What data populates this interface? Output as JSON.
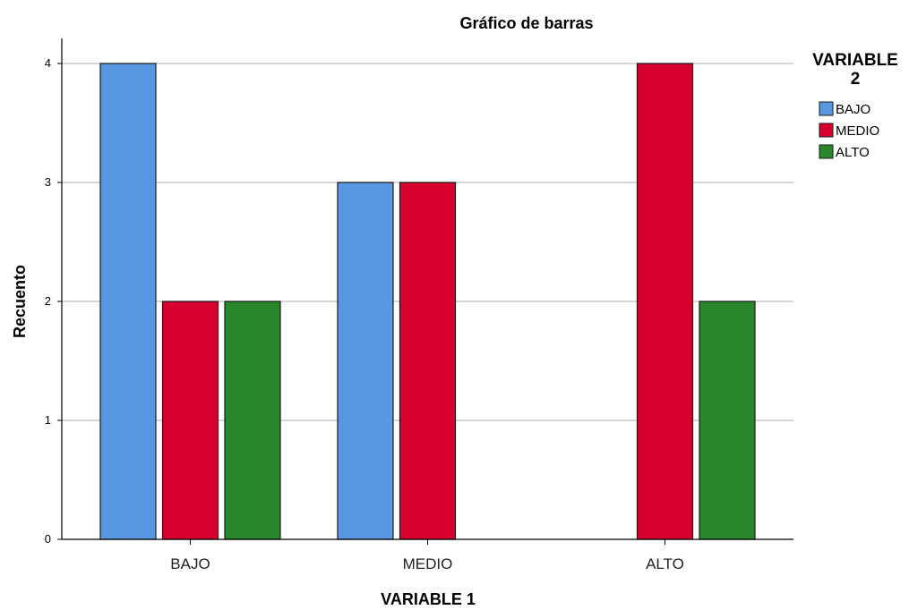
{
  "chart_data": {
    "type": "bar",
    "title": "Gráfico de barras",
    "xlabel": "VARIABLE 1",
    "ylabel": "Recuento",
    "categories": [
      "BAJO",
      "MEDIO",
      "ALTO"
    ],
    "series": [
      {
        "name": "BAJO",
        "values": [
          4,
          3,
          0
        ],
        "color": "#5898e0"
      },
      {
        "name": "MEDIO",
        "values": [
          2,
          3,
          4
        ],
        "color": "#d6002f"
      },
      {
        "name": "ALTO",
        "values": [
          2,
          0,
          2
        ],
        "color": "#28862b"
      }
    ],
    "ylim": [
      0,
      4
    ],
    "yticks": [
      "0",
      "1",
      "2",
      "3",
      "4"
    ],
    "grid": true,
    "legend": {
      "title_line1": "VARIABLE",
      "title_line2": "2",
      "position": "right"
    }
  }
}
